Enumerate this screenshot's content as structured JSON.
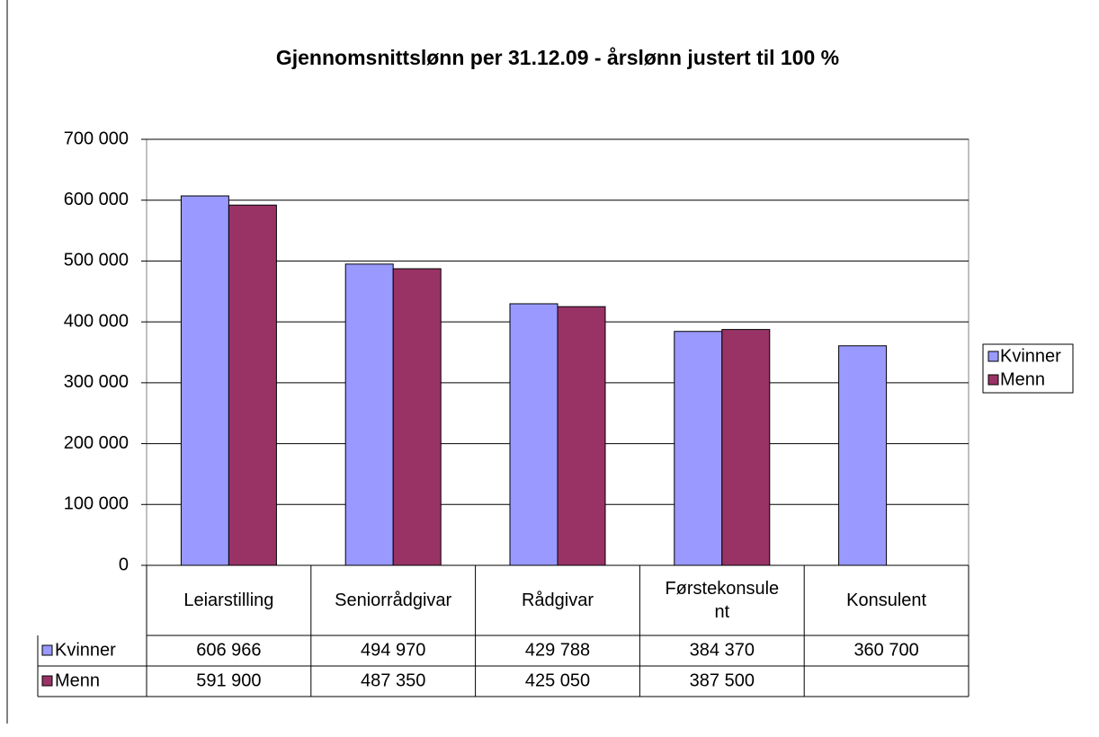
{
  "chart_data": {
    "type": "bar",
    "title": "Gjennomsnittslønn per 31.12.09 - årslønn justert til 100 %",
    "categories": [
      "Leiarstilling",
      "Seniorrådgivar",
      "Rådgivar",
      "Førstekonsulent",
      "Konsulent"
    ],
    "series": [
      {
        "name": "Kvinner",
        "color": "#9999ff",
        "values": [
          606966,
          494970,
          429788,
          384370,
          360700
        ],
        "value_labels": [
          "606 966",
          "494 970",
          "429 788",
          "384 370",
          "360 700"
        ]
      },
      {
        "name": "Menn",
        "color": "#993366",
        "values": [
          591900,
          487350,
          425050,
          387500,
          null
        ],
        "value_labels": [
          "591 900",
          "487 350",
          "425 050",
          "387 500",
          null
        ]
      }
    ],
    "ylim": [
      0,
      700000
    ],
    "yticks": [
      0,
      {
        "value": 100000,
        "label": "100 000"
      },
      {
        "value": 200000,
        "label": "200 000"
      },
      {
        "value": 300000,
        "label": "300 000"
      },
      {
        "value": 400000,
        "label": "400 000"
      },
      {
        "value": 500000,
        "label": "500 000"
      },
      {
        "value": 600000,
        "label": "600 000"
      },
      {
        "value": 700000,
        "label": "700 000"
      }
    ],
    "grid": true,
    "legend": "right"
  }
}
